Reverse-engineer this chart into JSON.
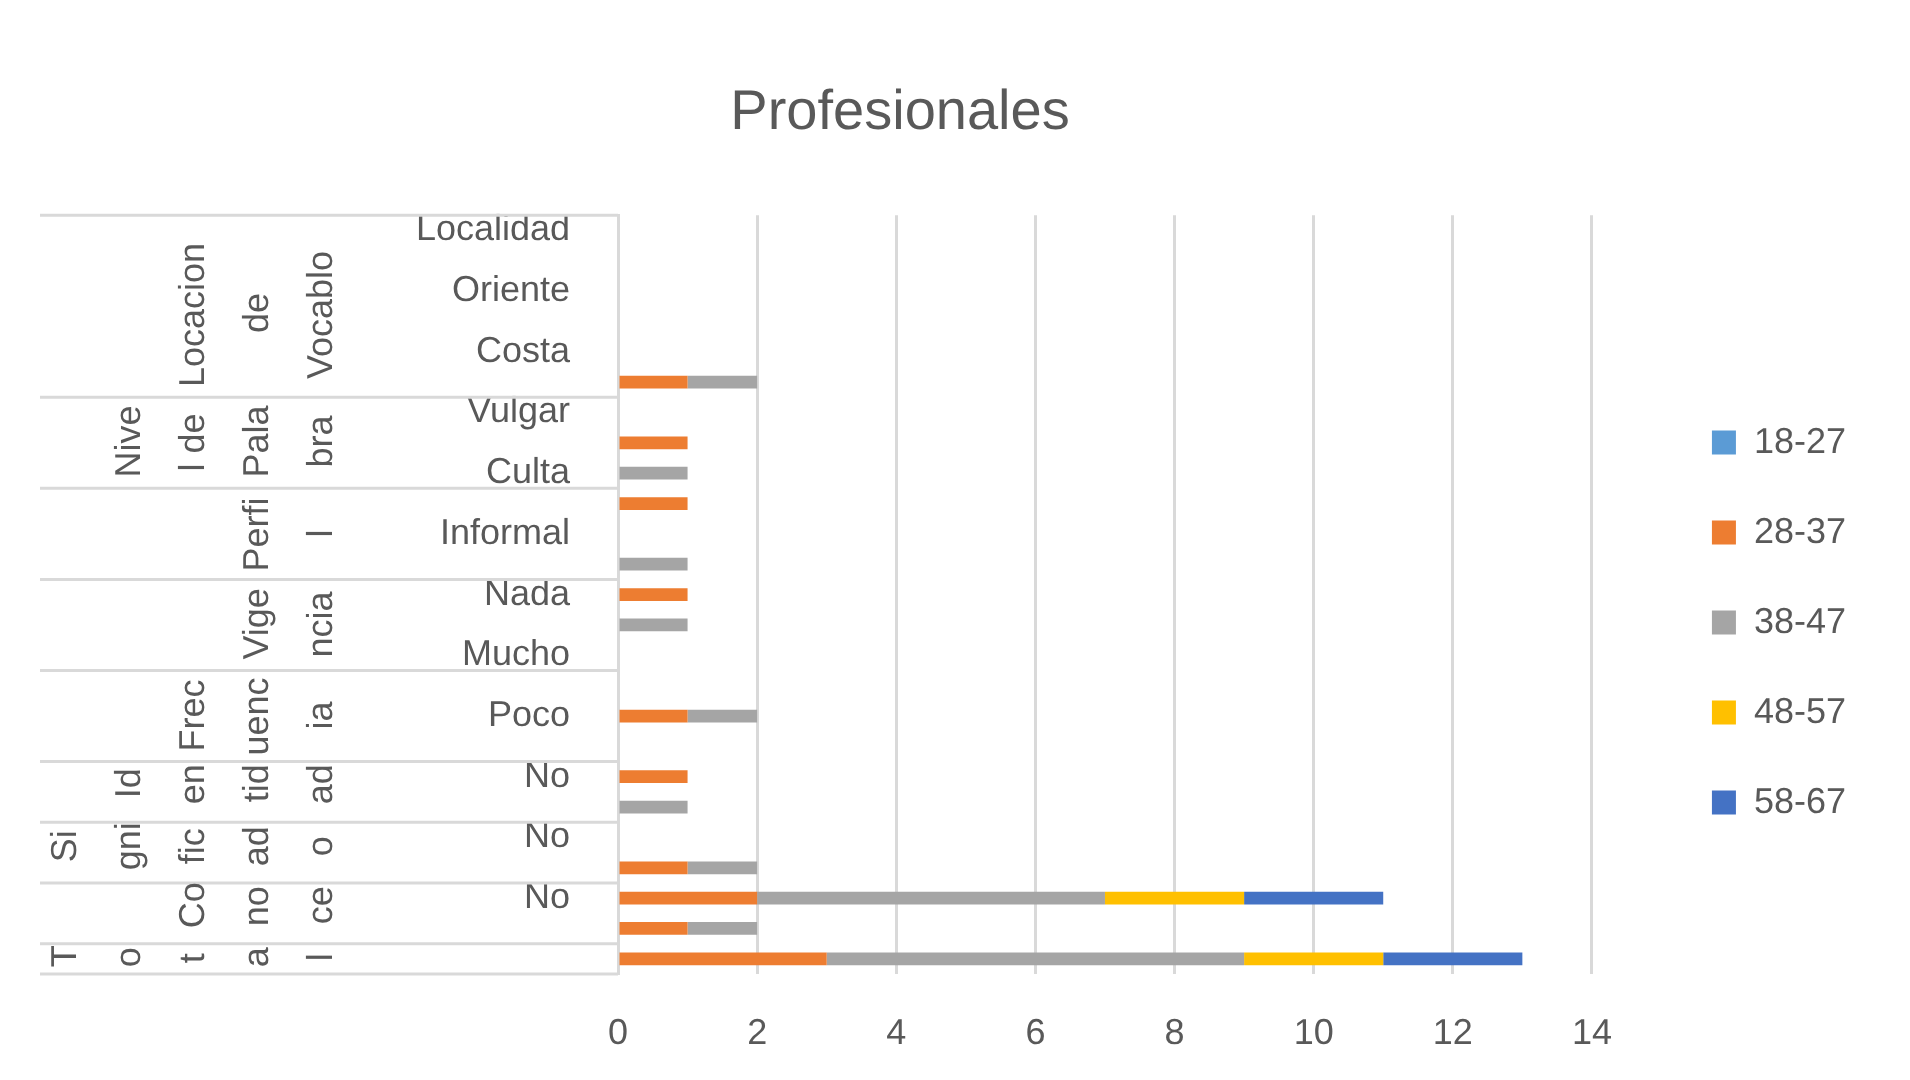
{
  "chart_data": {
    "type": "bar",
    "title": "Profesionales",
    "orientation": "horizontal",
    "stacked": true,
    "categories": [
      "Localidad",
      null,
      "Oriente",
      null,
      "Costa",
      null,
      "Vulgar",
      null,
      "Culta",
      null,
      "Informal",
      null,
      "Nada",
      null,
      "Mucho",
      null,
      "Poco",
      null,
      "No",
      null,
      "No",
      null,
      "No",
      null,
      null
    ],
    "y2_categories": [
      null,
      null,
      null,
      "Locacion de Vocablo",
      null,
      null,
      null,
      "Nivel de Palabra",
      null,
      null,
      "Perfil",
      null,
      null,
      "Vigencia",
      null,
      null,
      "Frecuencia",
      null,
      "Identidad",
      null,
      "Significado",
      null,
      "Conoce",
      null,
      "Total"
    ],
    "series": [
      {
        "name": "18-27",
        "color": "#5b9bd5",
        "values": [
          null,
          null,
          null,
          null,
          null,
          null,
          null,
          null,
          null,
          null,
          null,
          null,
          null,
          null,
          null,
          null,
          null,
          null,
          null,
          null,
          null,
          null,
          null,
          null,
          null
        ]
      },
      {
        "name": "28-37",
        "color": "#ed7d31",
        "values": [
          null,
          null,
          null,
          null,
          null,
          1,
          null,
          1,
          null,
          1,
          null,
          null,
          1,
          null,
          null,
          null,
          1,
          null,
          1,
          null,
          null,
          1,
          2,
          1,
          3
        ]
      },
      {
        "name": "38-47",
        "color": "#a5a5a5",
        "values": [
          null,
          null,
          null,
          null,
          null,
          1,
          null,
          null,
          1,
          null,
          null,
          1,
          null,
          1,
          null,
          null,
          1,
          null,
          null,
          1,
          null,
          1,
          5,
          1,
          6
        ]
      },
      {
        "name": "48-57",
        "color": "#ffc000",
        "values": [
          null,
          null,
          null,
          null,
          null,
          null,
          null,
          null,
          null,
          null,
          null,
          null,
          null,
          null,
          null,
          null,
          null,
          null,
          null,
          null,
          null,
          null,
          2,
          null,
          2
        ]
      },
      {
        "name": "58-67",
        "color": "#4472c4",
        "values": [
          null,
          null,
          null,
          null,
          null,
          null,
          null,
          null,
          null,
          null,
          null,
          null,
          null,
          null,
          null,
          null,
          null,
          null,
          null,
          null,
          null,
          null,
          2,
          null,
          2
        ]
      }
    ],
    "xlim": [
      0,
      14
    ],
    "xticks": [
      0,
      2,
      4,
      6,
      8,
      10,
      12,
      14
    ],
    "grid": "x",
    "legend": "right"
  }
}
